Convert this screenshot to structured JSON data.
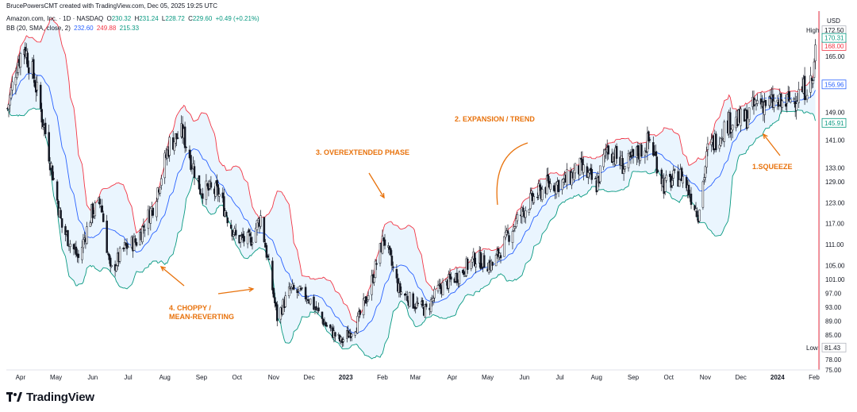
{
  "header": {
    "credit": "BrucePowersCMT created with TradingView.com, Dec 05, 2025 19:25 UTC",
    "symbol_line": "Amazon.com, Inc. · 1D · NASDAQ",
    "ohlc": {
      "o_label": "O",
      "o": "230.32",
      "h_label": "H",
      "h": "231.24",
      "l_label": "L",
      "l": "228.72",
      "c_label": "C",
      "c": "229.60",
      "change": "+0.49 (+0.21%)"
    },
    "indicator": {
      "label": "BB (20, SMA, close, 2)",
      "basis": "232.60",
      "upper": "249.88",
      "lower": "215.33"
    }
  },
  "colors": {
    "up": "#26a69a",
    "down": "#ef5350",
    "candle": "#131722",
    "basis": "#2962ff",
    "upper_band": "#f23645",
    "lower_band": "#089981",
    "band_fill": "#e3f2fd",
    "annotation": "#e8720c",
    "last_price_line": "#f23645"
  },
  "price_axis": {
    "currency": "USD",
    "tick_labels": [
      "172.50",
      "168.00",
      "165.00",
      "156.96",
      "149.00",
      "141.00",
      "133.00",
      "129.00",
      "123.00",
      "117.00",
      "111.00",
      "105.00",
      "101.00",
      "97.00",
      "93.00",
      "89.00",
      "85.00",
      "81.43",
      "78.00",
      "75.00"
    ],
    "tags": [
      {
        "label": "High",
        "value": "172.50",
        "style": "plain"
      },
      {
        "label": "",
        "value": "170.31",
        "style": "lower"
      },
      {
        "label": "",
        "value": "168.00",
        "style": "upper"
      },
      {
        "label": "",
        "value": "156.96",
        "style": "basis"
      },
      {
        "label": "",
        "value": "145.91",
        "style": "lower"
      },
      {
        "label": "Low",
        "value": "81.43",
        "style": "plain"
      }
    ]
  },
  "time_axis": {
    "labels": [
      {
        "text": "Apr",
        "bold": false
      },
      {
        "text": "May",
        "bold": false
      },
      {
        "text": "Jun",
        "bold": false
      },
      {
        "text": "Jul",
        "bold": false
      },
      {
        "text": "Aug",
        "bold": false
      },
      {
        "text": "Sep",
        "bold": false
      },
      {
        "text": "Oct",
        "bold": false
      },
      {
        "text": "Nov",
        "bold": false
      },
      {
        "text": "Dec",
        "bold": false
      },
      {
        "text": "2023",
        "bold": true
      },
      {
        "text": "Feb",
        "bold": false
      },
      {
        "text": "Mar",
        "bold": false
      },
      {
        "text": "Apr",
        "bold": false
      },
      {
        "text": "May",
        "bold": false
      },
      {
        "text": "Jun",
        "bold": false
      },
      {
        "text": "Jul",
        "bold": false
      },
      {
        "text": "Aug",
        "bold": false
      },
      {
        "text": "Sep",
        "bold": false
      },
      {
        "text": "Oct",
        "bold": false
      },
      {
        "text": "Nov",
        "bold": false
      },
      {
        "text": "Dec",
        "bold": false
      },
      {
        "text": "2024",
        "bold": true
      },
      {
        "text": "Feb",
        "bold": false
      }
    ]
  },
  "annotations": [
    {
      "text": "1.SQUEEZE"
    },
    {
      "text": "2. EXPANSION / TREND"
    },
    {
      "text": "3. OVEREXTENDED PHASE"
    },
    {
      "text": "4. CHOPPY /\nMEAN-REVERTING"
    }
  ],
  "footer": {
    "brand": "TradingView"
  },
  "chart_data": {
    "type": "candlestick",
    "instrument": "Amazon.com, Inc.",
    "interval": "1D",
    "exchange": "NASDAQ",
    "x_range": [
      "2022-03-20",
      "2024-02-05"
    ],
    "y_range": [
      75.0,
      178.0
    ],
    "indicator": "Bollinger Bands (20, SMA, close, 2)",
    "close_path": [
      [
        "2022-03-21",
        150
      ],
      [
        "2022-03-29",
        163
      ],
      [
        "2022-04-04",
        168
      ],
      [
        "2022-04-13",
        158
      ],
      [
        "2022-04-22",
        143
      ],
      [
        "2022-05-06",
        116
      ],
      [
        "2022-05-20",
        107
      ],
      [
        "2022-05-31",
        120
      ],
      [
        "2022-06-08",
        123
      ],
      [
        "2022-06-16",
        103
      ],
      [
        "2022-06-28",
        110
      ],
      [
        "2022-07-08",
        112
      ],
      [
        "2022-07-22",
        122
      ],
      [
        "2022-08-05",
        140
      ],
      [
        "2022-08-16",
        143
      ],
      [
        "2022-08-31",
        127
      ],
      [
        "2022-09-15",
        126
      ],
      [
        "2022-09-30",
        113
      ],
      [
        "2022-10-12",
        112
      ],
      [
        "2022-10-21",
        119
      ],
      [
        "2022-11-04",
        90
      ],
      [
        "2022-11-15",
        98
      ],
      [
        "2022-11-30",
        96
      ],
      [
        "2022-12-15",
        88
      ],
      [
        "2022-12-28",
        83
      ],
      [
        "2023-01-10",
        88
      ],
      [
        "2023-01-20",
        97
      ],
      [
        "2023-02-02",
        113
      ],
      [
        "2023-02-15",
        98
      ],
      [
        "2023-02-28",
        94
      ],
      [
        "2023-03-10",
        92
      ],
      [
        "2023-03-20",
        98
      ],
      [
        "2023-04-05",
        102
      ],
      [
        "2023-04-20",
        107
      ],
      [
        "2023-05-05",
        105
      ],
      [
        "2023-05-22",
        116
      ],
      [
        "2023-06-05",
        123
      ],
      [
        "2023-06-20",
        128
      ],
      [
        "2023-07-05",
        129
      ],
      [
        "2023-07-18",
        133
      ],
      [
        "2023-08-01",
        128
      ],
      [
        "2023-08-10",
        139
      ],
      [
        "2023-08-25",
        133
      ],
      [
        "2023-09-07",
        138
      ],
      [
        "2023-09-15",
        141
      ],
      [
        "2023-09-27",
        128
      ],
      [
        "2023-10-12",
        131
      ],
      [
        "2023-10-26",
        120
      ],
      [
        "2023-11-03",
        138
      ],
      [
        "2023-11-20",
        146
      ],
      [
        "2023-12-05",
        147
      ],
      [
        "2023-12-15",
        152
      ],
      [
        "2024-01-05",
        151
      ],
      [
        "2024-01-18",
        154
      ],
      [
        "2024-01-31",
        158
      ],
      [
        "2024-02-03",
        171
      ]
    ],
    "labeled_levels": {
      "high": 172.5,
      "low": 81.43,
      "last_upper": 168.0,
      "last_basis": 156.96,
      "last_lower": 145.91,
      "last_close": 170.31
    }
  }
}
